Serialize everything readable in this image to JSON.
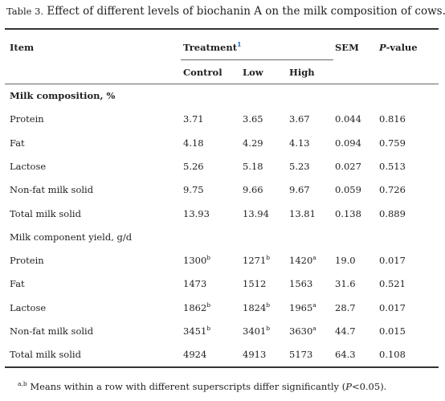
{
  "caption": {
    "label": "Table 3.",
    "text": "Effect of different levels of biochanin A on the milk composition of cows."
  },
  "header": {
    "item": "Item",
    "treatment": "Treatment",
    "treatment_mark": "1",
    "sem": "SEM",
    "pvalue_p": "P",
    "pvalue_rest": "-value",
    "control": "Control",
    "low": "Low",
    "high": "High"
  },
  "sections": [
    {
      "title": "Milk composition, %",
      "rows": [
        {
          "item": "Protein",
          "control": "3.71",
          "control_sup": "",
          "low": "3.65",
          "low_sup": "",
          "high": "3.67",
          "high_sup": "",
          "sem": "0.044",
          "p": "0.816"
        },
        {
          "item": "Fat",
          "control": "4.18",
          "control_sup": "",
          "low": "4.29",
          "low_sup": "",
          "high": "4.13",
          "high_sup": "",
          "sem": "0.094",
          "p": "0.759"
        },
        {
          "item": "Lactose",
          "control": "5.26",
          "control_sup": "",
          "low": "5.18",
          "low_sup": "",
          "high": "5.23",
          "high_sup": "",
          "sem": "0.027",
          "p": "0.513"
        },
        {
          "item": "Non-fat milk solid",
          "control": "9.75",
          "control_sup": "",
          "low": "9.66",
          "low_sup": "",
          "high": "9.67",
          "high_sup": "",
          "sem": "0.059",
          "p": "0.726"
        },
        {
          "item": "Total milk solid",
          "control": "13.93",
          "control_sup": "",
          "low": "13.94",
          "low_sup": "",
          "high": "13.81",
          "high_sup": "",
          "sem": "0.138",
          "p": "0.889"
        }
      ]
    },
    {
      "title": "Milk component yield, g/d",
      "rows": [
        {
          "item": "Protein",
          "control": "1300",
          "control_sup": "b",
          "low": "1271",
          "low_sup": "b",
          "high": "1420",
          "high_sup": "a",
          "sem": "19.0",
          "p": "0.017"
        },
        {
          "item": "Fat",
          "control": "1473",
          "control_sup": "",
          "low": "1512",
          "low_sup": "",
          "high": "1563",
          "high_sup": "",
          "sem": "31.6",
          "p": "0.521"
        },
        {
          "item": "Lactose",
          "control": "1862",
          "control_sup": "b",
          "low": "1824",
          "low_sup": "b",
          "high": "1965",
          "high_sup": "a",
          "sem": "28.7",
          "p": "0.017"
        },
        {
          "item": "Non-fat milk solid",
          "control": "3451",
          "control_sup": "b",
          "low": "3401",
          "low_sup": "b",
          "high": "3630",
          "high_sup": "a",
          "sem": "44.7",
          "p": "0.015"
        },
        {
          "item": "Total milk solid",
          "control": "4924",
          "control_sup": "",
          "low": "4913",
          "low_sup": "",
          "high": "5173",
          "high_sup": "",
          "sem": "64.3",
          "p": "0.108"
        }
      ]
    }
  ],
  "footnote": {
    "sup": "a,b",
    "text_before": " Means within a row with different superscripts differ significantly (",
    "p": "P",
    "text_after": "<0.05)."
  }
}
